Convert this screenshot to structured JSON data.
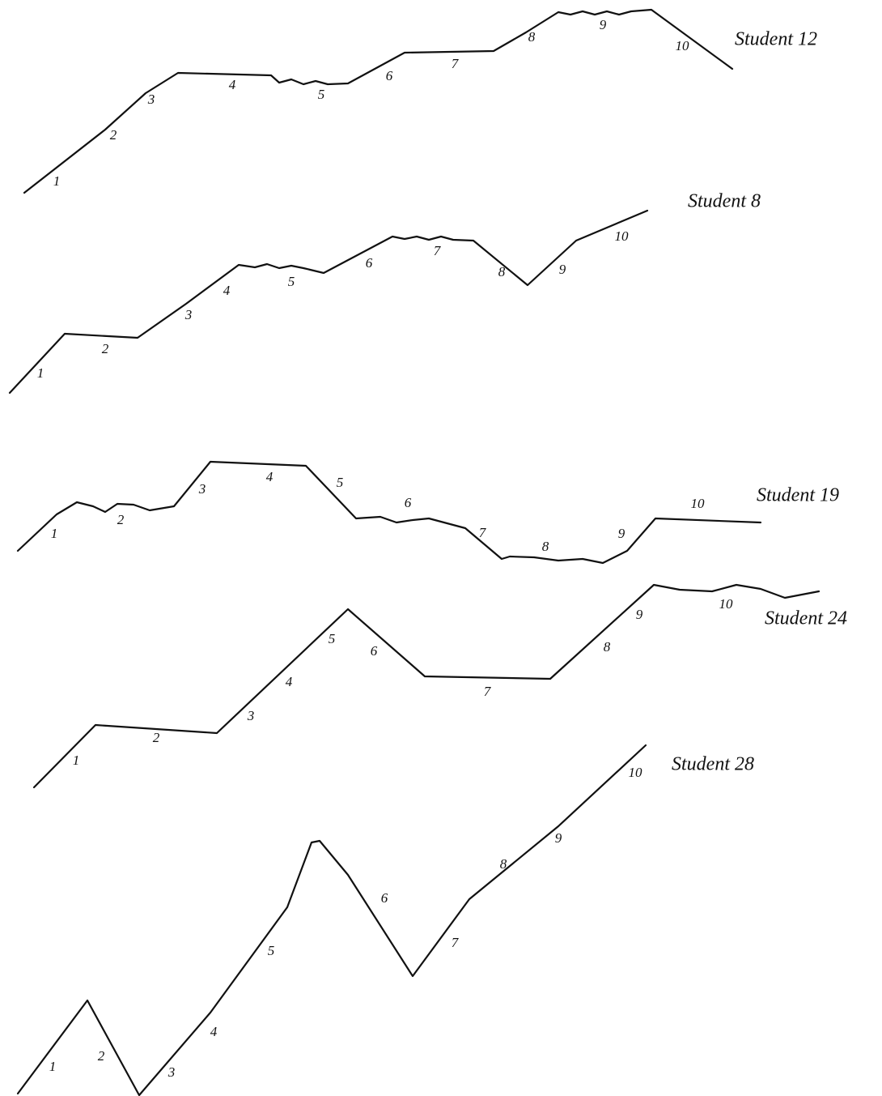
{
  "sketches": [
    {
      "label": "Student 12",
      "segments": [
        "1",
        "2",
        "3",
        "4",
        "5",
        "6",
        "7",
        "8",
        "9",
        "10"
      ]
    },
    {
      "label": "Student 8",
      "segments": [
        "1",
        "2",
        "3",
        "4",
        "5",
        "6",
        "7",
        "8",
        "9",
        "10"
      ]
    },
    {
      "label": "Student 19",
      "segments": [
        "1",
        "2",
        "3",
        "4",
        "5",
        "6",
        "7",
        "8",
        "9",
        "10"
      ]
    },
    {
      "label": "Student 24",
      "segments": [
        "1",
        "2",
        "3",
        "4",
        "5",
        "6",
        "7",
        "8",
        "9",
        "10"
      ]
    },
    {
      "label": "Student 28",
      "segments": [
        "1",
        "2",
        "3",
        "4",
        "5",
        "6",
        "7",
        "8",
        "9",
        "10"
      ]
    }
  ]
}
